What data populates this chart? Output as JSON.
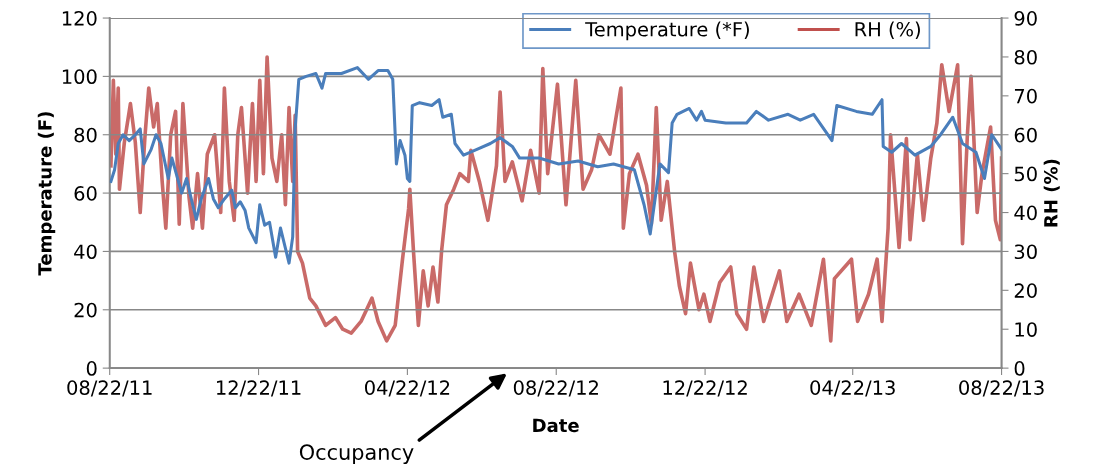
{
  "chart_data": {
    "type": "line",
    "xlabel": "Date",
    "ylabel": "Temperature (F)",
    "y2label": "RH (%)",
    "xlim": [
      "2011-08-22",
      "2013-08-22"
    ],
    "xticks": [
      {
        "value": "2011-08-22",
        "label": "08/22/11"
      },
      {
        "value": "2011-12-22",
        "label": "12/22/11"
      },
      {
        "value": "2012-04-22",
        "label": "04/22/12"
      },
      {
        "value": "2012-08-22",
        "label": "08/22/12"
      },
      {
        "value": "2012-12-22",
        "label": "12/22/12"
      },
      {
        "value": "2013-04-22",
        "label": "04/22/13"
      },
      {
        "value": "2013-08-22",
        "label": "08/22/13"
      }
    ],
    "ylim": [
      0,
      120
    ],
    "yticks": [
      0,
      20,
      40,
      60,
      80,
      100,
      120
    ],
    "y2lim": [
      0,
      90
    ],
    "y2ticks": [
      0,
      10,
      20,
      30,
      40,
      50,
      60,
      70,
      80,
      90
    ],
    "grid": "y",
    "legend": "top right",
    "marker": "none",
    "line_style": "solid",
    "annotations": [
      "Occupancy"
    ],
    "series": [
      {
        "name": "Temperature (*F)",
        "color": "#4a7ebb",
        "x": [
          "2011-08-23",
          "2011-08-26",
          "2011-08-29",
          "2011-09-02",
          "2011-09-07",
          "2011-09-12",
          "2011-09-16",
          "2011-09-19",
          "2011-09-25",
          "2011-09-29",
          "2011-10-03",
          "2011-10-09",
          "2011-10-12",
          "2011-10-16",
          "2011-10-20",
          "2011-10-24",
          "2011-10-29",
          "2011-11-01",
          "2011-11-05",
          "2011-11-11",
          "2011-11-15",
          "2011-11-19",
          "2011-11-24",
          "2011-11-30",
          "2011-12-03",
          "2011-12-07",
          "2011-12-11",
          "2011-12-14",
          "2011-12-20",
          "2011-12-23",
          "2011-12-27",
          "2011-12-31",
          "2012-01-05",
          "2012-01-09",
          "2012-01-16",
          "2012-01-19",
          "2012-01-21",
          "2012-01-24",
          "2012-01-30",
          "2012-02-07",
          "2012-02-12",
          "2012-02-15",
          "2012-02-28",
          "2012-03-12",
          "2012-03-21",
          "2012-03-29",
          "2012-04-06",
          "2012-04-10",
          "2012-04-12",
          "2012-04-13",
          "2012-04-16",
          "2012-04-20",
          "2012-04-22",
          "2012-04-24",
          "2012-04-26",
          "2012-05-02",
          "2012-05-12",
          "2012-05-18",
          "2012-05-21",
          "2012-05-28",
          "2012-05-31",
          "2012-06-07",
          "2012-06-18",
          "2012-06-29",
          "2012-07-07",
          "2012-07-17",
          "2012-07-23",
          "2012-08-08",
          "2012-08-24",
          "2012-09-09",
          "2012-09-25",
          "2012-10-08",
          "2012-10-25",
          "2012-11-02",
          "2012-11-07",
          "2012-11-10",
          "2012-11-15",
          "2012-11-22",
          "2012-11-25",
          "2012-11-29",
          "2012-12-09",
          "2012-12-15",
          "2012-12-19",
          "2012-12-22",
          "2013-01-08",
          "2013-01-25",
          "2013-02-02",
          "2013-02-12",
          "2013-02-28",
          "2013-03-10",
          "2013-03-21",
          "2013-04-05",
          "2013-04-09",
          "2013-04-25",
          "2013-05-08",
          "2013-05-16",
          "2013-05-17",
          "2013-05-24",
          "2013-06-01",
          "2013-06-12",
          "2013-06-25",
          "2013-07-03",
          "2013-07-13",
          "2013-07-21",
          "2013-08-01",
          "2013-08-08",
          "2013-08-14",
          "2013-08-22"
        ],
        "values": [
          64,
          68,
          77,
          80,
          78,
          80,
          82,
          70,
          75,
          80,
          77,
          65,
          72,
          66,
          60,
          65,
          56,
          51,
          58,
          65,
          58,
          55,
          58,
          61,
          55,
          57,
          54,
          48,
          43,
          56,
          49,
          50,
          38,
          48,
          36,
          45,
          82,
          99,
          100,
          101,
          96,
          101,
          101,
          103,
          99,
          102,
          102,
          99,
          80,
          70,
          78,
          73,
          65,
          64,
          90,
          91,
          90,
          92,
          86,
          87,
          77,
          73,
          75,
          77,
          79,
          76,
          72,
          72,
          70,
          71,
          69,
          70,
          68,
          56,
          46,
          55,
          70,
          67,
          84,
          87,
          89,
          85,
          88,
          85,
          84,
          84,
          88,
          85,
          87,
          85,
          87,
          78,
          90,
          88,
          87,
          92,
          76,
          74,
          77,
          73,
          76,
          80,
          86,
          77,
          74,
          65,
          80,
          75
        ]
      },
      {
        "name": "RH (%)",
        "color": "#c0504d",
        "axis": "y2",
        "x": [
          "2011-08-23",
          "2011-08-25",
          "2011-08-27",
          "2011-08-29",
          "2011-08-30",
          "2011-09-03",
          "2011-09-08",
          "2011-09-12",
          "2011-09-16",
          "2011-09-20",
          "2011-09-23",
          "2011-09-27",
          "2011-09-30",
          "2011-10-04",
          "2011-10-07",
          "2011-10-11",
          "2011-10-15",
          "2011-10-18",
          "2011-10-21",
          "2011-10-26",
          "2011-10-29",
          "2011-11-02",
          "2011-11-06",
          "2011-11-10",
          "2011-11-16",
          "2011-11-21",
          "2011-11-24",
          "2011-11-28",
          "2011-12-02",
          "2011-12-05",
          "2011-12-08",
          "2011-12-13",
          "2011-12-17",
          "2011-12-20",
          "2011-12-23",
          "2011-12-26",
          "2011-12-29",
          "2012-01-02",
          "2012-01-06",
          "2012-01-10",
          "2012-01-13",
          "2012-01-16",
          "2012-01-19",
          "2012-01-21",
          "2012-01-23",
          "2012-01-27",
          "2012-02-02",
          "2012-02-07",
          "2012-02-15",
          "2012-02-23",
          "2012-02-29",
          "2012-03-07",
          "2012-03-15",
          "2012-03-24",
          "2012-03-29",
          "2012-04-05",
          "2012-04-12",
          "2012-04-18",
          "2012-04-23",
          "2012-04-24",
          "2012-04-27",
          "2012-05-01",
          "2012-05-05",
          "2012-05-09",
          "2012-05-13",
          "2012-05-17",
          "2012-05-20",
          "2012-05-24",
          "2012-05-30",
          "2012-06-04",
          "2012-06-11",
          "2012-06-13",
          "2012-06-20",
          "2012-06-27",
          "2012-07-04",
          "2012-07-07",
          "2012-07-11",
          "2012-07-17",
          "2012-07-25",
          "2012-08-01",
          "2012-08-08",
          "2012-08-11",
          "2012-08-15",
          "2012-08-23",
          "2012-08-30",
          "2012-09-07",
          "2012-09-13",
          "2012-09-20",
          "2012-09-26",
          "2012-10-05",
          "2012-10-14",
          "2012-10-16",
          "2012-10-21",
          "2012-10-28",
          "2012-11-04",
          "2012-11-08",
          "2012-11-12",
          "2012-11-16",
          "2012-11-21",
          "2012-11-27",
          "2012-12-01",
          "2012-12-06",
          "2012-12-10",
          "2012-12-17",
          "2012-12-21",
          "2012-12-26",
          "2013-01-03",
          "2013-01-12",
          "2013-01-17",
          "2013-01-25",
          "2013-01-31",
          "2013-02-08",
          "2013-02-21",
          "2013-02-27",
          "2013-03-09",
          "2013-03-19",
          "2013-03-29",
          "2013-04-04",
          "2013-04-07",
          "2013-04-21",
          "2013-04-26",
          "2013-05-05",
          "2013-05-12",
          "2013-05-16",
          "2013-05-21",
          "2013-05-23",
          "2013-05-30",
          "2013-06-05",
          "2013-06-08",
          "2013-06-14",
          "2013-06-19",
          "2013-06-25",
          "2013-06-30",
          "2013-07-04",
          "2013-07-10",
          "2013-07-17",
          "2013-07-21",
          "2013-07-25",
          "2013-07-28",
          "2013-08-02",
          "2013-08-06",
          "2013-08-13",
          "2013-08-17",
          "2013-08-21",
          "2013-08-22"
        ],
        "values": [
          52,
          74,
          55,
          72,
          46,
          58,
          68,
          58,
          40,
          60,
          72,
          62,
          68,
          48,
          36,
          60,
          66,
          37,
          68,
          44,
          36,
          50,
          36,
          55,
          60,
          40,
          72,
          48,
          38,
          60,
          67,
          45,
          68,
          48,
          74,
          50,
          80,
          54,
          48,
          60,
          42,
          67,
          48,
          65,
          30,
          27,
          18,
          16,
          11,
          13,
          10,
          9,
          12,
          18,
          12,
          7,
          11,
          28,
          41,
          46,
          30,
          11,
          25,
          16,
          26,
          17,
          30,
          42,
          46,
          50,
          48,
          56,
          48,
          38,
          52,
          71,
          48,
          53,
          43,
          56,
          45,
          77,
          50,
          73,
          42,
          74,
          46,
          51,
          60,
          55,
          72,
          36,
          50,
          55,
          47,
          37,
          67,
          38,
          48,
          30,
          21,
          14,
          27,
          15,
          19,
          12,
          22,
          26,
          14,
          10,
          26,
          12,
          25,
          12,
          19,
          11,
          28,
          7,
          23,
          28,
          12,
          19,
          28,
          12,
          36,
          60,
          31,
          59,
          33,
          55,
          38,
          54,
          63,
          78,
          66,
          78,
          32,
          60,
          75,
          40,
          50,
          62,
          38,
          33,
          54
        ]
      }
    ]
  }
}
